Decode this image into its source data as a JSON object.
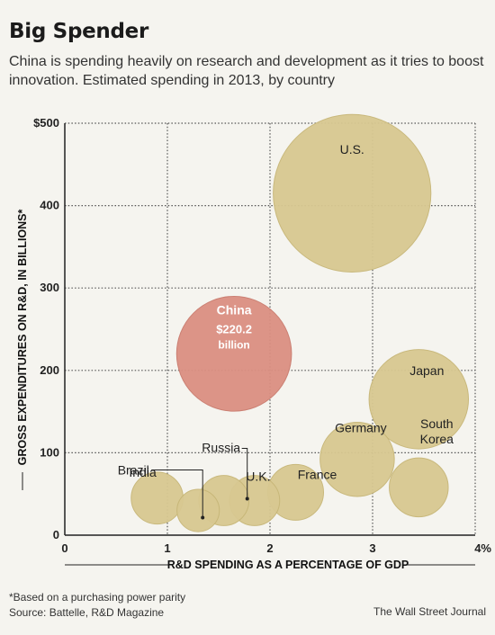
{
  "title": "Big Spender",
  "subtitle": "China is spending heavily on research and development as it tries to boost innovation. Estimated spending in 2013, by country",
  "footnote": {
    "line1": "*Based on a purchasing power parity",
    "line2": "Source: Battelle, R&D Magazine"
  },
  "credit": "The Wall Street Journal",
  "colors": {
    "bubble_fill": "#d8c891",
    "bubble_stroke": "#c7b677",
    "highlight_fill": "#db8f82",
    "highlight_stroke": "#c97a6d",
    "grid": "#555555",
    "background": "#f5f4ef"
  },
  "chart_data": {
    "type": "scatter",
    "subtype": "bubble",
    "xlabel": "R&D SPENDING AS A PERCENTAGE OF GDP",
    "ylabel": "GROSS EXPENDITURES ON R&D, IN BILLIONS*",
    "xlim": [
      0,
      4
    ],
    "ylim": [
      0,
      500
    ],
    "x_ticks": [
      "0",
      "1",
      "2",
      "3",
      "4%"
    ],
    "y_ticks": [
      "0",
      "100",
      "200",
      "300",
      "400",
      "$500"
    ],
    "grid": true,
    "points": [
      {
        "name": "U.S.",
        "x": 2.8,
        "y": 415,
        "size": 415,
        "highlight": false
      },
      {
        "name": "China",
        "x": 1.65,
        "y": 220.2,
        "size": 220.2,
        "highlight": true,
        "value_label": "$220.2",
        "unit_label": "billion"
      },
      {
        "name": "Japan",
        "x": 3.45,
        "y": 165,
        "size": 165,
        "highlight": false
      },
      {
        "name": "Germany",
        "x": 2.85,
        "y": 92,
        "size": 92,
        "highlight": false
      },
      {
        "name": "South Korea",
        "label_lines": [
          "South",
          "Korea"
        ],
        "x": 3.45,
        "y": 58,
        "size": 58,
        "highlight": false
      },
      {
        "name": "France",
        "x": 2.25,
        "y": 52,
        "size": 52,
        "highlight": false
      },
      {
        "name": "U.K.",
        "x": 1.85,
        "y": 42,
        "size": 42,
        "highlight": false
      },
      {
        "name": "India",
        "x": 0.9,
        "y": 45,
        "size": 45,
        "highlight": false
      },
      {
        "name": "Russia",
        "x": 1.55,
        "y": 42,
        "size": 42,
        "highlight": false
      },
      {
        "name": "Brazil",
        "x": 1.3,
        "y": 30,
        "size": 30,
        "highlight": false
      }
    ]
  }
}
